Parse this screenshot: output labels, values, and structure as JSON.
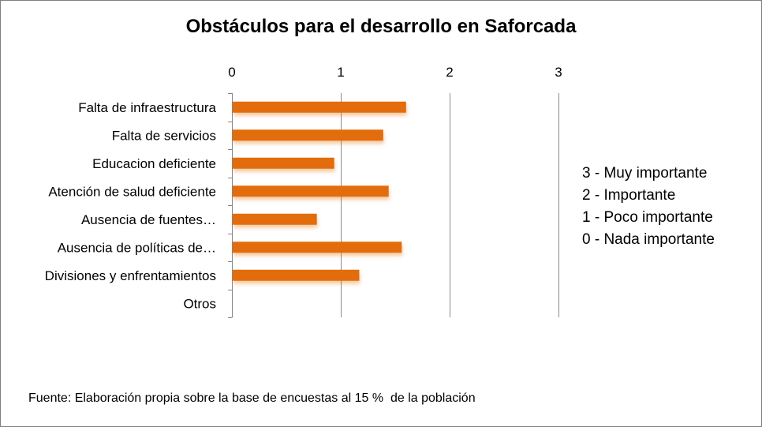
{
  "chart_data": {
    "type": "bar",
    "orientation": "horizontal",
    "title": "Obstáculos para el desarrollo en Saforcada",
    "categories": [
      "Falta de infraestructura",
      "Falta de servicios",
      "Educacion deficiente",
      "Atención de salud deficiente",
      "Ausencia de fuentes…",
      "Ausencia de políticas de…",
      "Divisiones y enfrentamientos",
      "Otros"
    ],
    "values": [
      1.6,
      1.39,
      0.94,
      1.44,
      0.78,
      1.56,
      1.17,
      0
    ],
    "xlim": [
      0,
      3
    ],
    "x_ticks": [
      "0",
      "1",
      "2",
      "3"
    ],
    "x_axis_position": "top",
    "grid": true,
    "bar_color": "#e36c09"
  },
  "legend_note": [
    "3 - Muy importante",
    "2 - Importante",
    "1 - Poco importante",
    "0 - Nada importante"
  ],
  "source_note": "Fuente: Elaboración propia sobre la base de encuestas al 15 %  de la población"
}
